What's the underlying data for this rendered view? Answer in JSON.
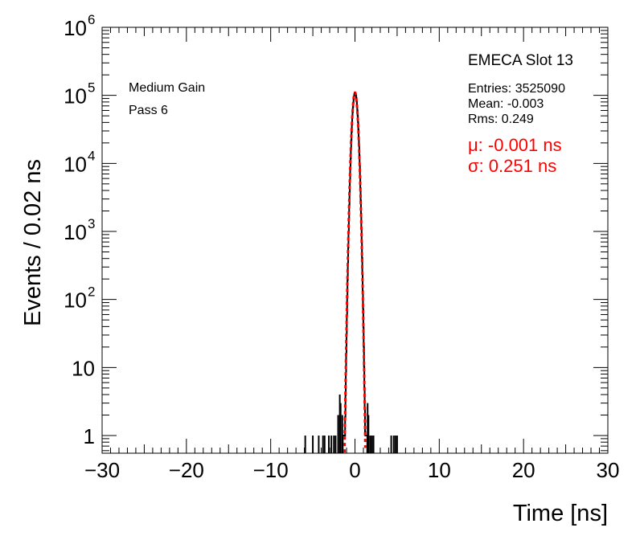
{
  "chart_data": {
    "type": "line",
    "title": "",
    "xlabel": "Time [ns]",
    "ylabel": "Events / 0.02 ns",
    "xlim": [
      -30,
      30
    ],
    "ylim": [
      0.55,
      1000000
    ],
    "y_scale": "log",
    "grid": false,
    "x_ticks": [
      {
        "value": -30,
        "label": "−30"
      },
      {
        "value": -20,
        "label": "−20"
      },
      {
        "value": -10,
        "label": "−10"
      },
      {
        "value": 0,
        "label": "0"
      },
      {
        "value": 10,
        "label": "10"
      },
      {
        "value": 20,
        "label": "20"
      },
      {
        "value": 30,
        "label": "30"
      }
    ],
    "y_ticks": [
      {
        "value": 1,
        "base": "1",
        "exp": ""
      },
      {
        "value": 10,
        "base": "10",
        "exp": ""
      },
      {
        "value": 100,
        "base": "10",
        "exp": "2"
      },
      {
        "value": 1000,
        "base": "10",
        "exp": "3"
      },
      {
        "value": 10000,
        "base": "10",
        "exp": "4"
      },
      {
        "value": 100000,
        "base": "10",
        "exp": "5"
      },
      {
        "value": 1000000,
        "base": "10",
        "exp": "6"
      }
    ],
    "annotations": {
      "gain": "Medium Gain",
      "pass": "Pass 6",
      "slot": "EMECA Slot 13",
      "entries": "Entries: 3525090",
      "mean": "Mean: -0.003",
      "rms": "Rms: 0.249",
      "fit_mu": "μ: -0.001 ns",
      "fit_sigma": "σ: 0.251 ns"
    },
    "series": [
      {
        "type": "histogram",
        "color": "#000000",
        "peak": 110000,
        "mean": -0.003,
        "rms": 0.249,
        "tail_bins": [
          {
            "x": -5.9,
            "y": 1
          },
          {
            "x": -5.0,
            "y": 1
          },
          {
            "x": -4.3,
            "y": 1
          },
          {
            "x": -3.8,
            "y": 1
          },
          {
            "x": -3.6,
            "y": 1
          },
          {
            "x": -3.1,
            "y": 1
          },
          {
            "x": -2.8,
            "y": 1
          },
          {
            "x": -2.5,
            "y": 1
          },
          {
            "x": -2.3,
            "y": 1
          },
          {
            "x": -2.0,
            "y": 2
          },
          {
            "x": -1.8,
            "y": 4
          },
          {
            "x": -1.7,
            "y": 3
          },
          {
            "x": -1.5,
            "y": 2
          },
          {
            "x": 1.5,
            "y": 3
          },
          {
            "x": 1.6,
            "y": 2
          },
          {
            "x": 1.8,
            "y": 1
          },
          {
            "x": 2.0,
            "y": 1
          },
          {
            "x": 2.2,
            "y": 1
          },
          {
            "x": 4.3,
            "y": 1
          },
          {
            "x": 4.6,
            "y": 1
          },
          {
            "x": 4.8,
            "y": 1
          },
          {
            "x": 5.0,
            "y": 1
          }
        ]
      },
      {
        "type": "gaussian-fit",
        "color": "#ff0000",
        "mu": -0.001,
        "sigma": 0.251,
        "amplitude": 110000
      }
    ]
  }
}
